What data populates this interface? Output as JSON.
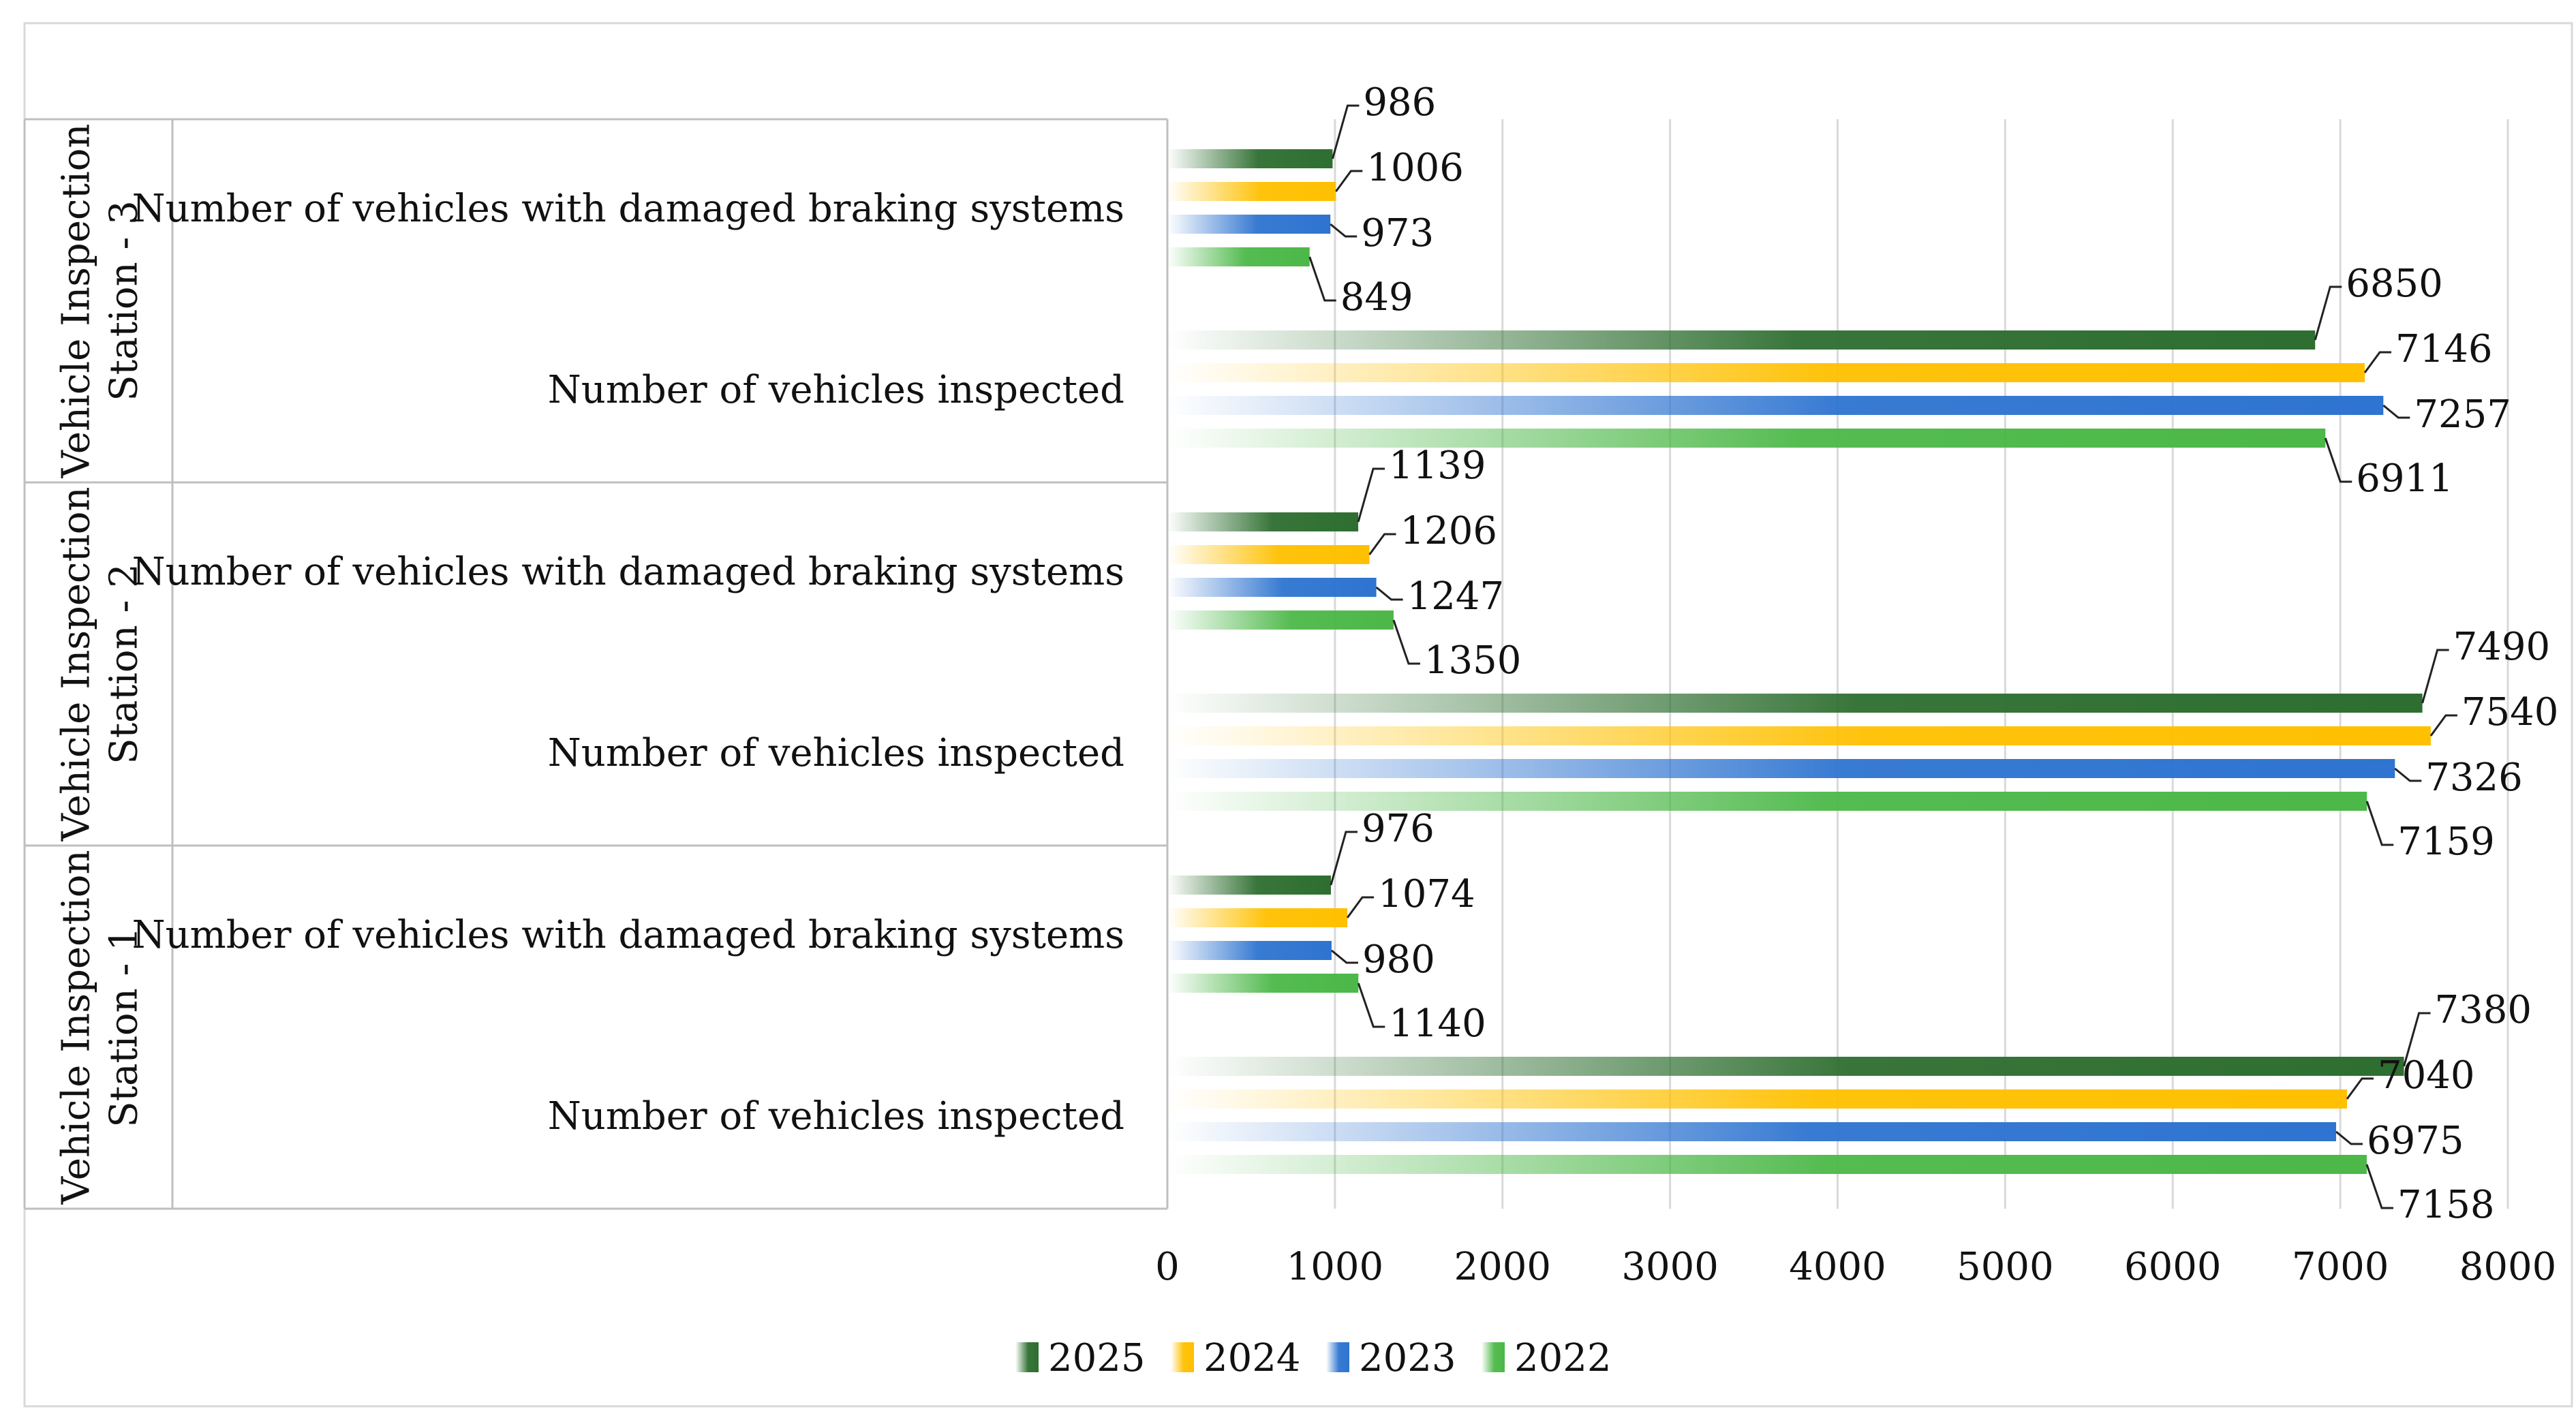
{
  "chart_data": {
    "type": "bar",
    "orientation": "horizontal",
    "title": "",
    "xlabel": "",
    "ylabel": "",
    "xlim": [
      0,
      8000
    ],
    "x_ticks": [
      "0",
      "1000",
      "2000",
      "3000",
      "4000",
      "5000",
      "6000",
      "7000",
      "8000"
    ],
    "grid": true,
    "legend_position": "bottom",
    "series_names": [
      "2025",
      "2024",
      "2023",
      "2022"
    ],
    "colors": {
      "2025": "#2e6e30",
      "2024": "#ffc000",
      "2023": "#2e74d0",
      "2022": "#4cb848"
    },
    "groups": [
      {
        "name": "Vehicle Inspection Station - 3",
        "name_lines": [
          "Vehicle Inspection",
          "Station - 3"
        ],
        "categories": [
          {
            "label": "Number of vehicles with damaged braking systems",
            "values": {
              "2025": 986,
              "2024": 1006,
              "2023": 973,
              "2022": 849
            }
          },
          {
            "label": "Number of vehicles inspected",
            "values": {
              "2025": 6850,
              "2024": 7146,
              "2023": 7257,
              "2022": 6911
            }
          }
        ]
      },
      {
        "name": "Vehicle Inspection Station - 2",
        "name_lines": [
          "Vehicle Inspection",
          "Station - 2"
        ],
        "categories": [
          {
            "label": "Number of vehicles with damaged braking systems",
            "values": {
              "2025": 1139,
              "2024": 1206,
              "2023": 1247,
              "2022": 1350
            }
          },
          {
            "label": "Number of vehicles inspected",
            "values": {
              "2025": 7490,
              "2024": 7540,
              "2023": 7326,
              "2022": 7159
            }
          }
        ]
      },
      {
        "name": "Vehicle Inspection Station - 1",
        "name_lines": [
          "Vehicle Inspection",
          "Station - 1"
        ],
        "categories": [
          {
            "label": "Number of vehicles with damaged braking systems",
            "values": {
              "2025": 976,
              "2024": 1074,
              "2023": 980,
              "2022": 1140
            }
          },
          {
            "label": "Number of vehicles inspected",
            "values": {
              "2025": 7380,
              "2024": 7040,
              "2023": 6975,
              "2022": 7158
            }
          }
        ]
      }
    ]
  }
}
